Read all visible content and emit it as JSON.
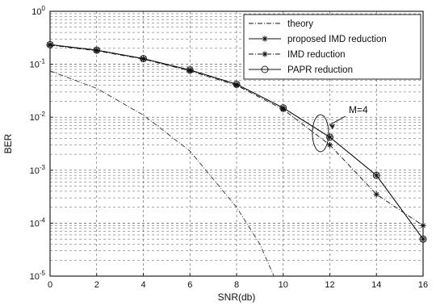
{
  "chart_data": {
    "type": "line",
    "title": "",
    "xlabel": "SNR(db)",
    "ylabel": "BER",
    "xlim": [
      0,
      16
    ],
    "ylim": [
      1e-05,
      1
    ],
    "y_scale": "log",
    "grid": true,
    "x_ticks": [
      "0",
      "2",
      "4",
      "6",
      "8",
      "10",
      "12",
      "14",
      "16"
    ],
    "y_ticks": [
      {
        "base": "10",
        "exp": "0"
      },
      {
        "base": "10",
        "exp": "-1"
      },
      {
        "base": "10",
        "exp": "-2"
      },
      {
        "base": "10",
        "exp": "-3"
      },
      {
        "base": "10",
        "exp": "-4"
      },
      {
        "base": "10",
        "exp": "-5"
      }
    ],
    "legend_position": "top-right",
    "series": [
      {
        "name": "theory",
        "style": "dash-dot, no marker",
        "color": "#333333",
        "x": [
          0,
          2,
          4,
          6,
          8,
          9,
          9.6
        ],
        "y": [
          0.075,
          0.035,
          0.011,
          0.0023,
          0.0002,
          4e-05,
          1e-05
        ]
      },
      {
        "name": "proposed IMD reduction",
        "style": "solid, star marker",
        "color": "#111111",
        "x": [
          0,
          2,
          4,
          6,
          8,
          10,
          12,
          14,
          16
        ],
        "y": [
          0.235,
          0.185,
          0.128,
          0.078,
          0.042,
          0.015,
          0.0042,
          0.0008,
          5e-05
        ]
      },
      {
        "name": "IMD reduction",
        "style": "dash-dot, star marker",
        "color": "#111111",
        "x": [
          0,
          2,
          4,
          6,
          8,
          10,
          12,
          14,
          16
        ],
        "y": [
          0.23,
          0.18,
          0.125,
          0.075,
          0.04,
          0.014,
          0.003,
          0.00035,
          9e-05
        ]
      },
      {
        "name": "PAPR reduction",
        "style": "solid, circle marker",
        "color": "#111111",
        "x": [
          0,
          2,
          4,
          6,
          8,
          10,
          12,
          14,
          16
        ],
        "y": [
          0.235,
          0.185,
          0.128,
          0.078,
          0.042,
          0.015,
          0.0042,
          0.0008,
          5e-05
        ]
      }
    ],
    "annotations": [
      {
        "text": "M=4",
        "x": 11.6,
        "y": 0.005
      }
    ]
  }
}
